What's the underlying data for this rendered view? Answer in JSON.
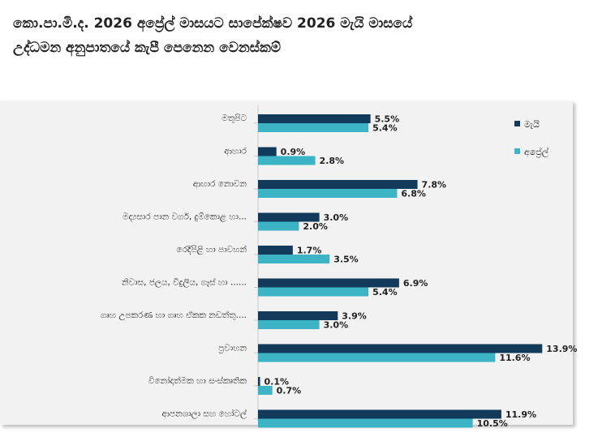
{
  "title_line1": "කො.පා.මි.ද. 2026 අප්‍රේල් මාසයට සාපේක්ෂව 2026 මැයි මාසයේ",
  "title_line2": "උද්ධමන අනුපාතයේ කැපී පෙනෙන වෙනස්කම්",
  "chart_data": {
    "type": "bar",
    "orientation": "horizontal",
    "categories": [
      "මතුපිට",
      "ආහාර",
      "ආහාර නොවන",
      "මද්‍යසාර පාන වර්ග, දුම්කොළ හා...",
      "රෙදිපිළි හා පාවහන්",
      "නිවාස, ජලය, විදුලිය, ගෑස් හා ......",
      "ගෘහ උපකරණ හා ගෘහ ඒකක නඩත්තු....",
      "ප්‍රවාහන",
      "විනෝදාත්මක හා සංස්කෘතික",
      "ආපනශාලා සහ හෝටල්"
    ],
    "series": [
      {
        "name": "මැයි",
        "color": "#123a5b",
        "values": [
          5.5,
          0.9,
          7.8,
          3.0,
          1.7,
          6.9,
          3.9,
          13.9,
          0.1,
          11.9
        ],
        "labels": [
          "5.5%",
          "0.9%",
          "7.8%",
          "3.0%",
          "1.7%",
          "6.9%",
          "3.9%",
          "13.9%",
          "0.1%",
          "11.9%"
        ]
      },
      {
        "name": "අප්‍රේල්",
        "color": "#3cb4c5",
        "values": [
          5.4,
          2.8,
          6.8,
          2.0,
          3.5,
          5.4,
          3.0,
          11.6,
          0.7,
          10.5
        ],
        "labels": [
          "5.4%",
          "2.8%",
          "6.8%",
          "2.0%",
          "3.5%",
          "5.4%",
          "3.0%",
          "11.6%",
          "0.7%",
          "10.5%"
        ]
      }
    ],
    "xlim": [
      0,
      14
    ],
    "legend_position": "top-right",
    "grid": false
  }
}
